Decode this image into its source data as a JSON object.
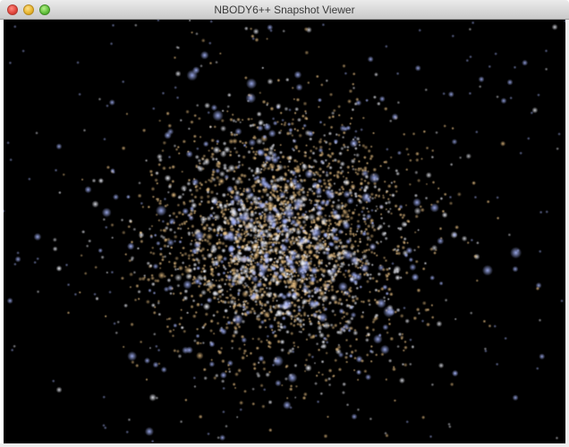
{
  "window": {
    "title": "NBODY6++ Snapshot Viewer"
  },
  "titlebar": {
    "buttons": [
      {
        "name": "close-button",
        "icon": "close-icon",
        "color": "#e0443b"
      },
      {
        "name": "minimize-button",
        "icon": "minimize-icon",
        "color": "#e6b42c"
      },
      {
        "name": "zoom-button",
        "icon": "zoom-icon",
        "color": "#5fbf3a"
      }
    ]
  },
  "viewport": {
    "background": "#000000",
    "content": "star cluster rendering",
    "star_colors": {
      "blue": "#a9b8ff",
      "white": "#f4f6ff",
      "gold": "#f3c98a"
    }
  }
}
